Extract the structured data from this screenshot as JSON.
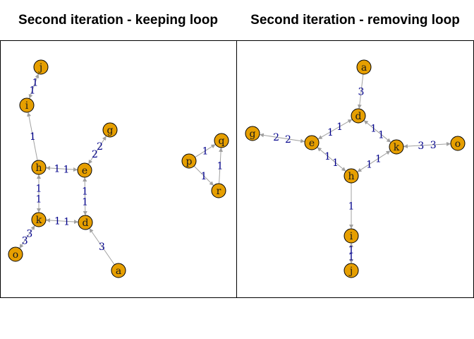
{
  "panels": [
    {
      "title": "Second iteration - keeping loop",
      "nodes": [
        "j",
        "i",
        "g",
        "h",
        "e",
        "p",
        "q",
        "r",
        "k",
        "d",
        "o",
        "a"
      ],
      "edges": [
        {
          "from": "i",
          "to": "j",
          "labels": [
            "1",
            "1"
          ]
        },
        {
          "from": "h",
          "to": "i",
          "labels": [
            "1"
          ]
        },
        {
          "from": "e",
          "to": "g",
          "labels": [
            "2",
            "2"
          ]
        },
        {
          "from": "h",
          "to": "e",
          "labels": [
            "1",
            "1"
          ]
        },
        {
          "from": "h",
          "to": "k",
          "labels": [
            "1",
            "1"
          ]
        },
        {
          "from": "e",
          "to": "d",
          "labels": [
            "1",
            "1"
          ]
        },
        {
          "from": "k",
          "to": "d",
          "labels": [
            "1",
            "1"
          ]
        },
        {
          "from": "k",
          "to": "o",
          "labels": [
            "3",
            "3"
          ]
        },
        {
          "from": "a",
          "to": "d",
          "labels": [
            "3"
          ]
        },
        {
          "from": "p",
          "to": "q",
          "labels": [
            "1"
          ]
        },
        {
          "from": "p",
          "to": "r",
          "labels": [
            "1"
          ]
        },
        {
          "from": "r",
          "to": "q",
          "labels": [
            "1"
          ]
        }
      ]
    },
    {
      "title": "Second iteration - removing loop",
      "nodes": [
        "a",
        "d",
        "g",
        "e",
        "k",
        "o",
        "h",
        "i",
        "j"
      ],
      "edges": [
        {
          "from": "a",
          "to": "d",
          "labels": [
            "3"
          ]
        },
        {
          "from": "e",
          "to": "d",
          "labels": [
            "1",
            "1"
          ]
        },
        {
          "from": "d",
          "to": "k",
          "labels": [
            "1",
            "1"
          ]
        },
        {
          "from": "g",
          "to": "e",
          "labels": [
            "2",
            "2"
          ]
        },
        {
          "from": "e",
          "to": "h",
          "labels": [
            "1",
            "1"
          ]
        },
        {
          "from": "h",
          "to": "k",
          "labels": [
            "1",
            "1"
          ]
        },
        {
          "from": "k",
          "to": "o",
          "labels": [
            "3",
            "3"
          ]
        },
        {
          "from": "h",
          "to": "i",
          "labels": [
            "1"
          ]
        },
        {
          "from": "i",
          "to": "j",
          "labels": [
            "1",
            "1"
          ]
        }
      ]
    }
  ],
  "colors": {
    "node_fill": "#e69f00",
    "node_stroke": "#000000",
    "edge": "#a0a0a0",
    "edge_label": "#00008b"
  }
}
